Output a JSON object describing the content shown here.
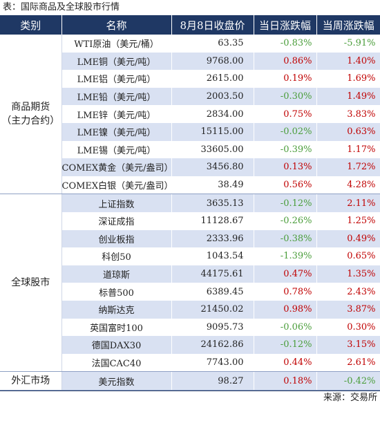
{
  "caption": "表：国际商品及全球股市行情",
  "headers": [
    "类别",
    "名称",
    "8月8日收盘价",
    "当日涨跌幅",
    "当周涨跌幅"
  ],
  "groups": [
    {
      "category": "商品期货\n（主力合约）",
      "rows": [
        {
          "name": "WTI原油（美元/桶）",
          "close": "63.35",
          "day": "-0.83%",
          "week": "-5.91%"
        },
        {
          "name": "LME铜（美元/吨）",
          "close": "9768.00",
          "day": "0.86%",
          "week": "1.40%"
        },
        {
          "name": "LME铝（美元/吨）",
          "close": "2615.00",
          "day": "0.19%",
          "week": "1.69%"
        },
        {
          "name": "LME铅（美元/吨）",
          "close": "2003.50",
          "day": "-0.30%",
          "week": "1.49%"
        },
        {
          "name": "LME锌（美元/吨）",
          "close": "2834.00",
          "day": "0.75%",
          "week": "3.83%"
        },
        {
          "name": "LME镍（美元/吨）",
          "close": "15115.00",
          "day": "-0.02%",
          "week": "0.63%"
        },
        {
          "name": "LME锡（美元/吨）",
          "close": "33605.00",
          "day": "-0.39%",
          "week": "1.17%"
        },
        {
          "name": "COMEX黄金（美元/盎司）",
          "close": "3456.80",
          "day": "0.13%",
          "week": "1.72%"
        },
        {
          "name": "COMEX白银（美元/盎司）",
          "close": "38.49",
          "day": "0.56%",
          "week": "4.28%"
        }
      ]
    },
    {
      "category": "全球股市",
      "rows": [
        {
          "name": "上证指数",
          "close": "3635.13",
          "day": "-0.12%",
          "week": "2.11%"
        },
        {
          "name": "深证成指",
          "close": "11128.67",
          "day": "-0.26%",
          "week": "1.25%"
        },
        {
          "name": "创业板指",
          "close": "2333.96",
          "day": "-0.38%",
          "week": "0.49%"
        },
        {
          "name": "科创50",
          "close": "1043.54",
          "day": "-1.39%",
          "week": "0.65%"
        },
        {
          "name": "道琼斯",
          "close": "44175.61",
          "day": "0.47%",
          "week": "1.35%"
        },
        {
          "name": "标普500",
          "close": "6389.45",
          "day": "0.78%",
          "week": "2.43%"
        },
        {
          "name": "纳斯达克",
          "close": "21450.02",
          "day": "0.98%",
          "week": "3.87%"
        },
        {
          "name": "英国富时100",
          "close": "9095.73",
          "day": "-0.06%",
          "week": "0.30%"
        },
        {
          "name": "德国DAX30",
          "close": "24162.86",
          "day": "-0.12%",
          "week": "3.15%"
        },
        {
          "name": "法国CAC40",
          "close": "7743.00",
          "day": "0.44%",
          "week": "2.61%"
        }
      ]
    },
    {
      "category": "外汇市场",
      "rows": [
        {
          "name": "美元指数",
          "close": "98.27",
          "day": "0.18%",
          "week": "-0.42%"
        }
      ]
    }
  ],
  "source": "来源：交易所"
}
